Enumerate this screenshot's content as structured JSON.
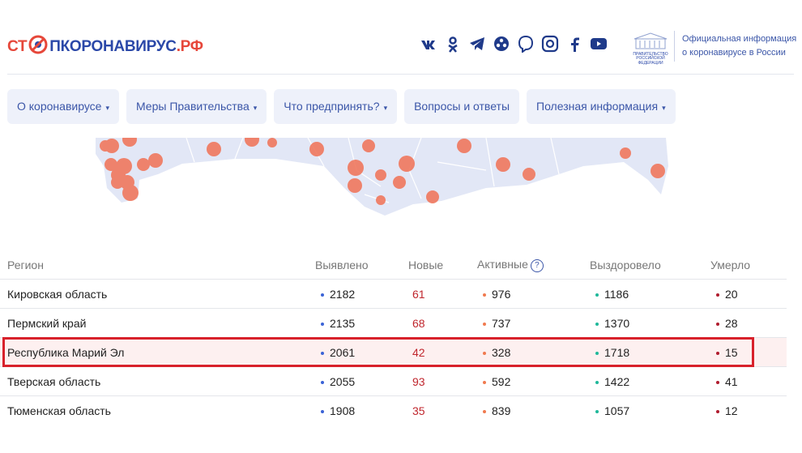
{
  "header": {
    "logo": [
      "СТ",
      "ПКОРОНАВИРУС",
      ".РФ"
    ],
    "gov_emblem": [
      "ПРАВИТЕЛЬСТВО",
      "РОССИЙСКОЙ",
      "ФЕДЕРАЦИИ"
    ],
    "info": [
      "Официальная информация",
      "о коронавирусе в России"
    ]
  },
  "nav": [
    {
      "label": "О коронавирусе",
      "dropdown": true
    },
    {
      "label": "Меры Правительства",
      "dropdown": true
    },
    {
      "label": "Что предпринять?",
      "dropdown": true
    },
    {
      "label": "Вопросы и ответы",
      "dropdown": false
    },
    {
      "label": "Полезная информация",
      "dropdown": true
    }
  ],
  "table": {
    "columns": [
      "Регион",
      "Выявлено",
      "Новые",
      "Активные",
      "Выздоровело",
      "Умерло"
    ],
    "highlighted_row": 2,
    "rows": [
      [
        "Кировская область",
        2182,
        61,
        976,
        1186,
        20
      ],
      [
        "Пермский край",
        2135,
        68,
        737,
        1370,
        28
      ],
      [
        "Республика Марий Эл",
        2061,
        42,
        328,
        1718,
        15
      ],
      [
        "Тверская область",
        2055,
        93,
        592,
        1422,
        41
      ],
      [
        "Тюменская область",
        1908,
        35,
        839,
        1057,
        12
      ]
    ]
  }
}
